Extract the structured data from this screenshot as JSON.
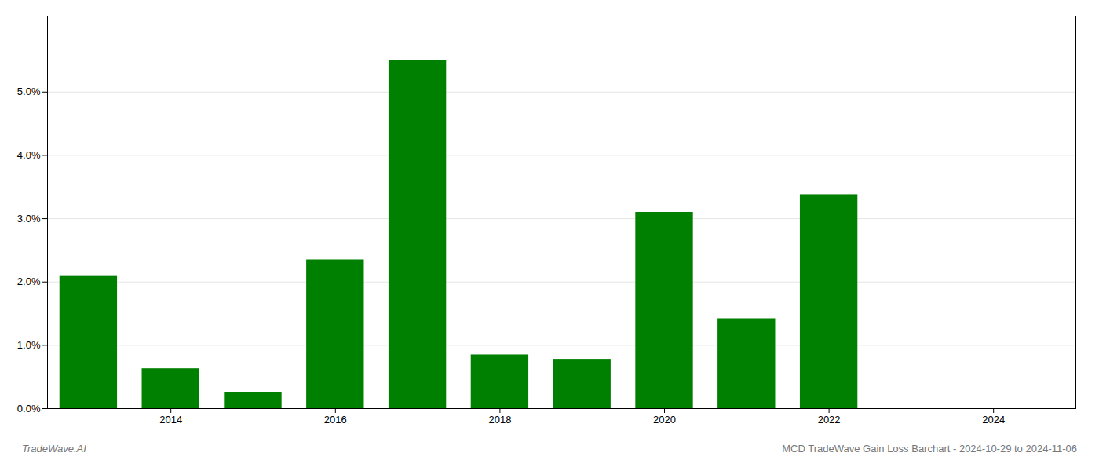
{
  "chart_data": {
    "type": "bar",
    "title": "MCD TradeWave Gain Loss Barchart - 2024-10-29 to 2024-11-06",
    "annotations": [
      "TradeWave.AI"
    ],
    "x": [
      2013,
      2014,
      2015,
      2016,
      2017,
      2018,
      2019,
      2020,
      2021,
      2022,
      2023
    ],
    "values": [
      2.1,
      0.63,
      0.25,
      2.35,
      5.5,
      0.85,
      0.78,
      3.1,
      1.42,
      3.38,
      0.0
    ],
    "color": "#008000",
    "xlim": [
      2012.5,
      2025.0
    ],
    "xticks": [
      2014,
      2016,
      2018,
      2020,
      2022,
      2024
    ],
    "ylim": [
      0,
      6.2
    ],
    "yticks": [
      {
        "value": 0.0,
        "label": "0.0%"
      },
      {
        "value": 1.0,
        "label": "1.0%"
      },
      {
        "value": 2.0,
        "label": "2.0%"
      },
      {
        "value": 3.0,
        "label": "3.0%"
      },
      {
        "value": 4.0,
        "label": "4.0%"
      },
      {
        "value": 5.0,
        "label": "5.0%"
      }
    ],
    "grid": true
  }
}
